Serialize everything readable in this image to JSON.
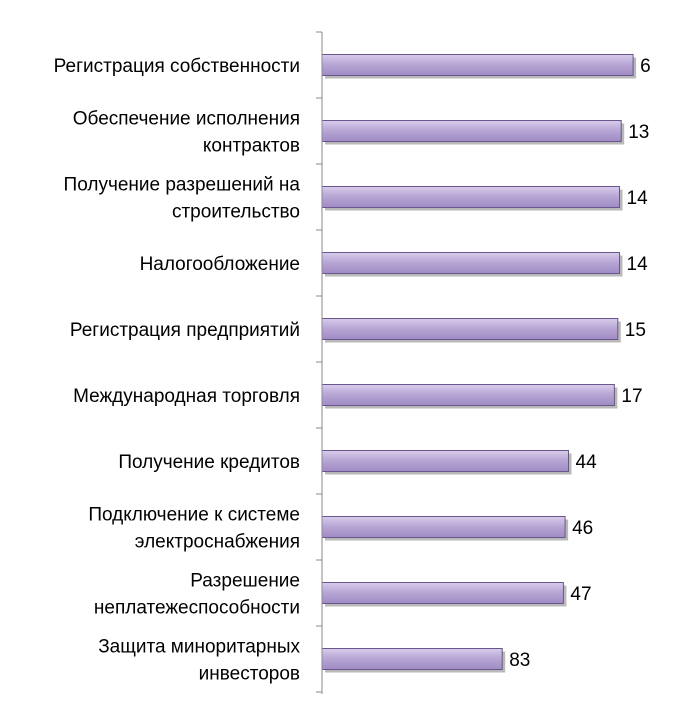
{
  "chart_data": {
    "type": "bar",
    "orientation": "horizontal",
    "categories": [
      [
        "Регистрация собственности"
      ],
      [
        "Обеспечение исполнения",
        "контрактов"
      ],
      [
        "Получение разрешений на",
        "строительство"
      ],
      [
        "Налогообложение"
      ],
      [
        "Регистрация предприятий"
      ],
      [
        "Международная торговля"
      ],
      [
        "Получение кредитов"
      ],
      [
        "Подключение к системе",
        "электроснабжения"
      ],
      [
        "Разрешение",
        "неплатежеспособности"
      ],
      [
        "Защита миноритарных",
        "инвесторов"
      ]
    ],
    "values": [
      6,
      13,
      14,
      14,
      15,
      17,
      44,
      46,
      47,
      83
    ],
    "value_labels": [
      "6",
      "13",
      "14",
      "14",
      "15",
      "17",
      "44",
      "46",
      "47",
      "83"
    ],
    "axis_direction": "reversed",
    "xlim": [
      0,
      189
    ],
    "title": "",
    "xlabel": "",
    "ylabel": "",
    "grid": false,
    "legend": "none",
    "colors": {
      "bar_fill": "#b9a7d6",
      "bar_fill_light": "#d8cdea",
      "bar_stroke": "#6a5591",
      "bar_shadow": "#7f7f7f",
      "axis": "#8a8a8a",
      "text": "#000000"
    }
  }
}
